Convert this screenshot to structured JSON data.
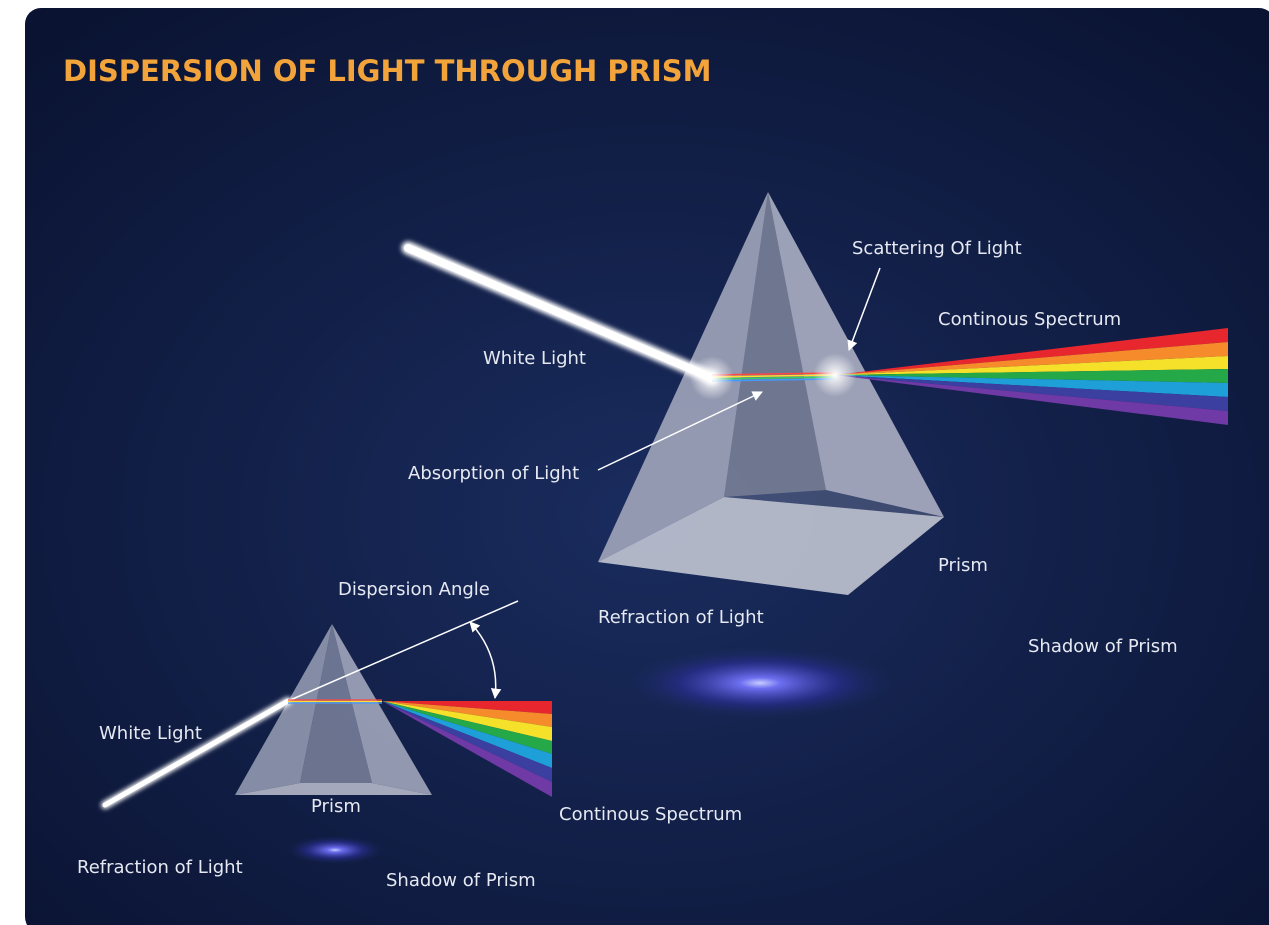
{
  "title": "DISPERSION OF LIGHT THROUGH PRISM",
  "large_diagram": {
    "scattering": "Scattering Of Light",
    "spectrum": "Continous Spectrum",
    "white_light": "White Light",
    "absorption": "Absorption of Light",
    "prism": "Prism",
    "refraction": "Refraction of Light",
    "shadow": "Shadow of Prism"
  },
  "small_diagram": {
    "angle": "Dispersion Angle",
    "white_light": "White Light",
    "prism": "Prism",
    "spectrum": "Continous Spectrum",
    "refraction": "Refraction of Light",
    "shadow": "Shadow of Prism"
  }
}
